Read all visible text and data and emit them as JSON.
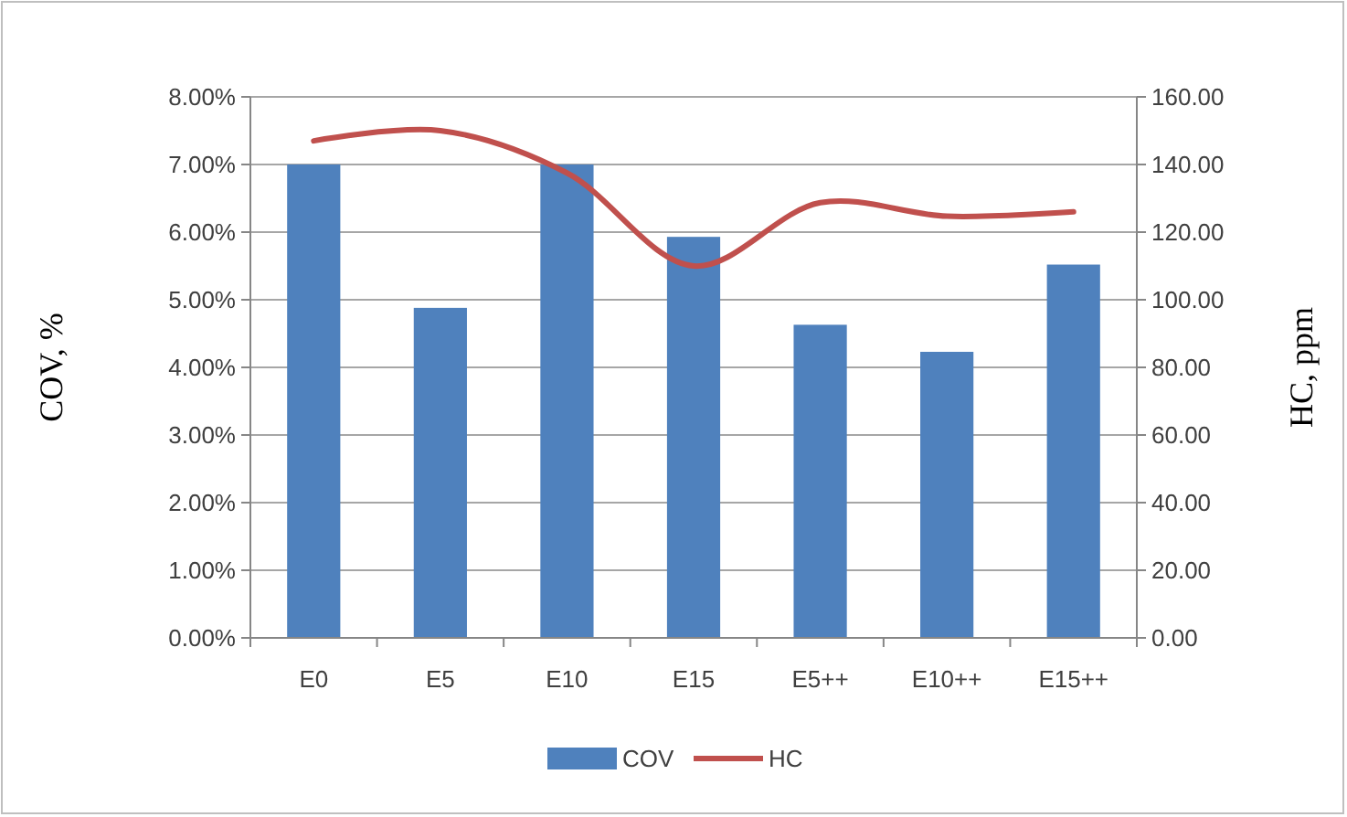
{
  "chart_data": {
    "type": "bar",
    "categories": [
      "E0",
      "E5",
      "E10",
      "E15",
      "E5++",
      "E10++",
      "E15++"
    ],
    "series": [
      {
        "name": "COV",
        "color": "#4f81bd",
        "values": [
          7.0,
          4.88,
          7.0,
          5.93,
          4.63,
          4.23,
          5.52
        ]
      },
      {
        "name": "HC",
        "type": "line",
        "axis": "y2",
        "color": "#c0504d",
        "values": [
          147,
          150,
          137.5,
          110,
          128.7,
          124.7,
          126
        ]
      }
    ],
    "ylabel": "COV, %",
    "y2label": "HC, ppm",
    "ylim": [
      0,
      8
    ],
    "yticks": [
      {
        "value": 0,
        "label": "0.00%"
      },
      {
        "value": 1,
        "label": "1.00%"
      },
      {
        "value": 2,
        "label": "2.00%"
      },
      {
        "value": 3,
        "label": "3.00%"
      },
      {
        "value": 4,
        "label": "4.00%"
      },
      {
        "value": 5,
        "label": "5.00%"
      },
      {
        "value": 6,
        "label": "6.00%"
      },
      {
        "value": 7,
        "label": "7.00%"
      },
      {
        "value": 8,
        "label": "8.00%"
      }
    ],
    "y2lim": [
      0,
      160
    ],
    "y2ticks": [
      {
        "value": 0,
        "label": "0.00"
      },
      {
        "value": 20,
        "label": "20.00"
      },
      {
        "value": 40,
        "label": "40.00"
      },
      {
        "value": 60,
        "label": "60.00"
      },
      {
        "value": 80,
        "label": "80.00"
      },
      {
        "value": 100,
        "label": "100.00"
      },
      {
        "value": 120,
        "label": "120.00"
      },
      {
        "value": 140,
        "label": "140.00"
      },
      {
        "value": 160,
        "label": "160.00"
      }
    ],
    "grid": "y",
    "legend": "bottom",
    "marker": "none",
    "line_style": "solid"
  }
}
